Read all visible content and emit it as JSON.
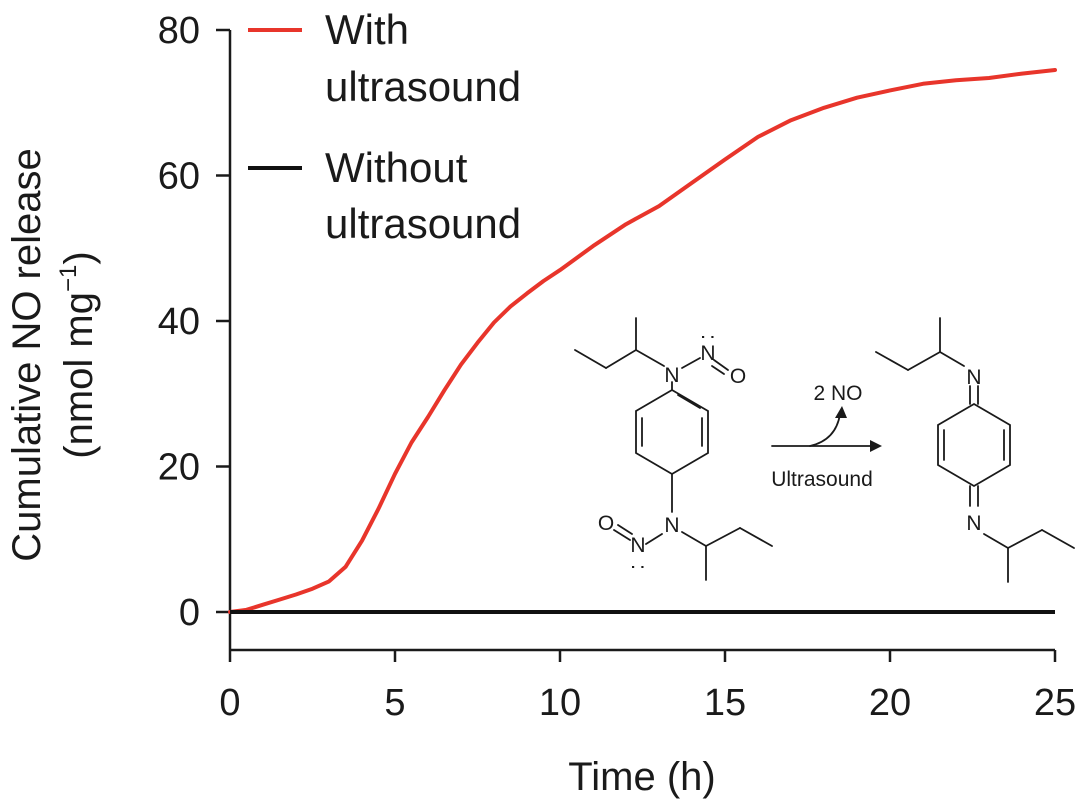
{
  "chart_data": {
    "type": "line",
    "xlabel": "Time (h)",
    "ylabel_line1": "Cumulative NO release",
    "ylabel_line2_prefix": "(nmol mg",
    "ylabel_line2_sup": "−1",
    "ylabel_line2_suffix": ")",
    "xlim": [
      0,
      25
    ],
    "ylim": [
      0,
      80
    ],
    "x_ticks": [
      0,
      5,
      10,
      15,
      20,
      25
    ],
    "y_ticks": [
      0,
      20,
      40,
      60,
      80
    ],
    "grid": false,
    "legend_position": "top-left",
    "series": [
      {
        "name_line1": "With",
        "name_line2": "ultrasound",
        "color": "#e8352b",
        "x": [
          0,
          0.5,
          1,
          1.5,
          2,
          2.5,
          3,
          3.5,
          4,
          4.5,
          5,
          5.5,
          6,
          6.5,
          7,
          7.5,
          8,
          8.5,
          9,
          9.5,
          10,
          11,
          12,
          13,
          14,
          15,
          16,
          17,
          18,
          19,
          20,
          21,
          22,
          23,
          24,
          25
        ],
        "y": [
          0,
          0.3,
          1.0,
          1.7,
          2.4,
          3.2,
          4.2,
          6.2,
          9.8,
          14.2,
          19.0,
          23.3,
          26.8,
          30.5,
          34.0,
          37.0,
          39.8,
          42.0,
          43.8,
          45.5,
          47.0,
          50.3,
          53.3,
          55.8,
          59.0,
          62.2,
          65.3,
          67.6,
          69.3,
          70.7,
          71.7,
          72.6,
          73.1,
          73.4,
          74.0,
          74.5
        ]
      },
      {
        "name_line1": "Without",
        "name_line2": "ultrasound",
        "color": "#111111",
        "x": [
          0,
          25
        ],
        "y": [
          0,
          0
        ]
      }
    ],
    "annotation": {
      "top_label": "2 NO",
      "bottom_label": "Ultrasound",
      "atoms": {
        "N": "N",
        "O": "O",
        "lone_pair": ":"
      }
    }
  }
}
